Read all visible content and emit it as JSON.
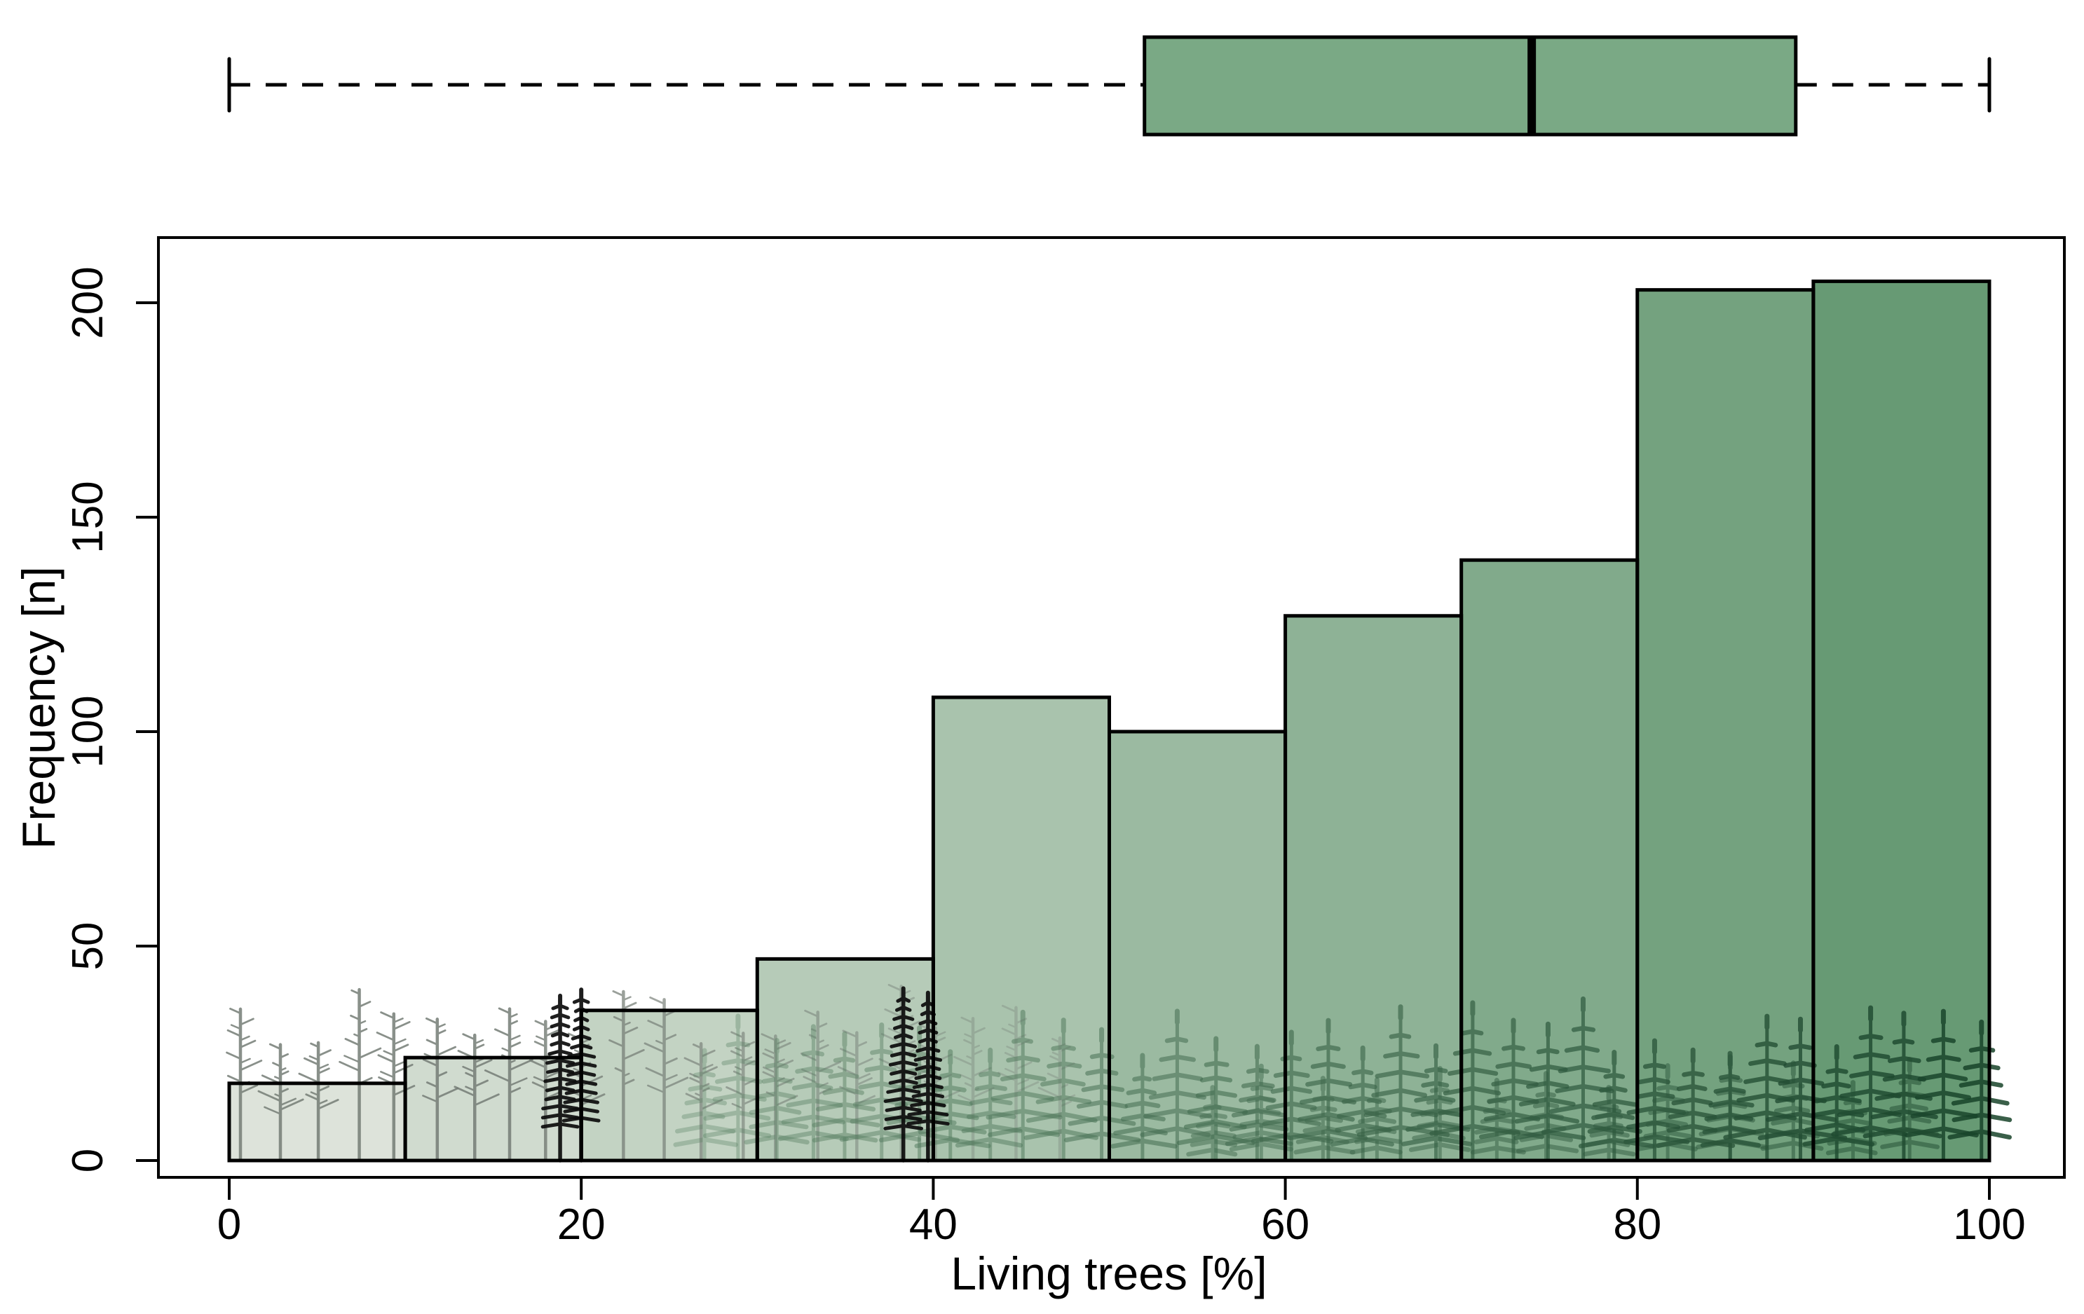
{
  "figure": {
    "background": "#ffffff",
    "description": "Histogram of living-tree percentage with a horizontal boxplot above"
  },
  "chart_data": {
    "type": "bar",
    "subtype": "histogram-with-boxplot",
    "title": "",
    "xlabel": "Living trees [%]",
    "ylabel": "Frequency [n]",
    "xlim": [
      0,
      100
    ],
    "ylim": [
      0,
      215
    ],
    "grid": false,
    "x_ticks": [
      0,
      20,
      40,
      60,
      80,
      100
    ],
    "y_ticks": [
      0,
      50,
      100,
      150,
      200
    ],
    "histogram": {
      "bin_edges": [
        0,
        10,
        20,
        30,
        40,
        50,
        60,
        70,
        80,
        90,
        100
      ],
      "values": [
        18,
        24,
        35,
        47,
        108,
        100,
        127,
        140,
        203,
        205
      ],
      "bar_colors": [
        "#dde3da",
        "#d0dbcf",
        "#c3d3c3",
        "#b6cbb8",
        "#a9c3ad",
        "#9bbaa1",
        "#8eb296",
        "#81aa8b",
        "#74a27f",
        "#679a74"
      ],
      "bar_outline": "#000000"
    },
    "boxplot": {
      "min": 0,
      "q1": 52,
      "median": 74,
      "q3": 89,
      "max": 100,
      "fill": "#7aa985",
      "outline": "#000000",
      "whisker_style": "dashed"
    },
    "decoration": {
      "forest_overlay": {
        "dead_tree_color": "#757d76",
        "spruce_color": "#0c0c0c",
        "conifer_color_light": "#5c8466",
        "conifer_color_dark": "#18442a",
        "spruce_positions_pct": [
          18.8,
          20.0,
          38.3,
          39.7
        ]
      }
    }
  }
}
